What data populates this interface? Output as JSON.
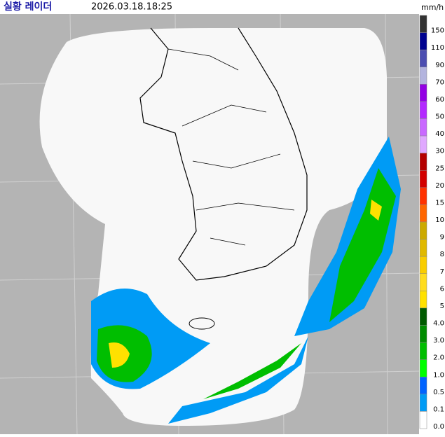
{
  "header": {
    "title": "실황 레이더",
    "timestamp": "2026.03.18.18:25",
    "unit": "mm/h"
  },
  "legend": [
    {
      "label": "150",
      "color": "#333333"
    },
    {
      "label": "110",
      "color": "#000390"
    },
    {
      "label": "90",
      "color": "#4c4eb1"
    },
    {
      "label": "70",
      "color": "#b3b4de"
    },
    {
      "label": "60",
      "color": "#9300e4"
    },
    {
      "label": "50",
      "color": "#b329ff"
    },
    {
      "label": "40",
      "color": "#c969ff"
    },
    {
      "label": "30",
      "color": "#e0a9ff"
    },
    {
      "label": "25",
      "color": "#b40000"
    },
    {
      "label": "20",
      "color": "#d20000"
    },
    {
      "label": "15",
      "color": "#ff3200"
    },
    {
      "label": "10",
      "color": "#ff6600"
    },
    {
      "label": "9",
      "color": "#ccaa00"
    },
    {
      "label": "8",
      "color": "#e0b900"
    },
    {
      "label": "7",
      "color": "#f9cd00"
    },
    {
      "label": "6",
      "color": "#ffdc1f"
    },
    {
      "label": "5",
      "color": "#ffe100"
    },
    {
      "label": "4.0",
      "color": "#005a00"
    },
    {
      "label": "3.0",
      "color": "#008c00"
    },
    {
      "label": "2.0",
      "color": "#00be00"
    },
    {
      "label": "1.0",
      "color": "#00ff00"
    },
    {
      "label": "0.5",
      "color": "#0063ff"
    },
    {
      "label": "0.1",
      "color": "#009bf5"
    },
    {
      "label": "0.0",
      "color": "#ffffff"
    }
  ]
}
